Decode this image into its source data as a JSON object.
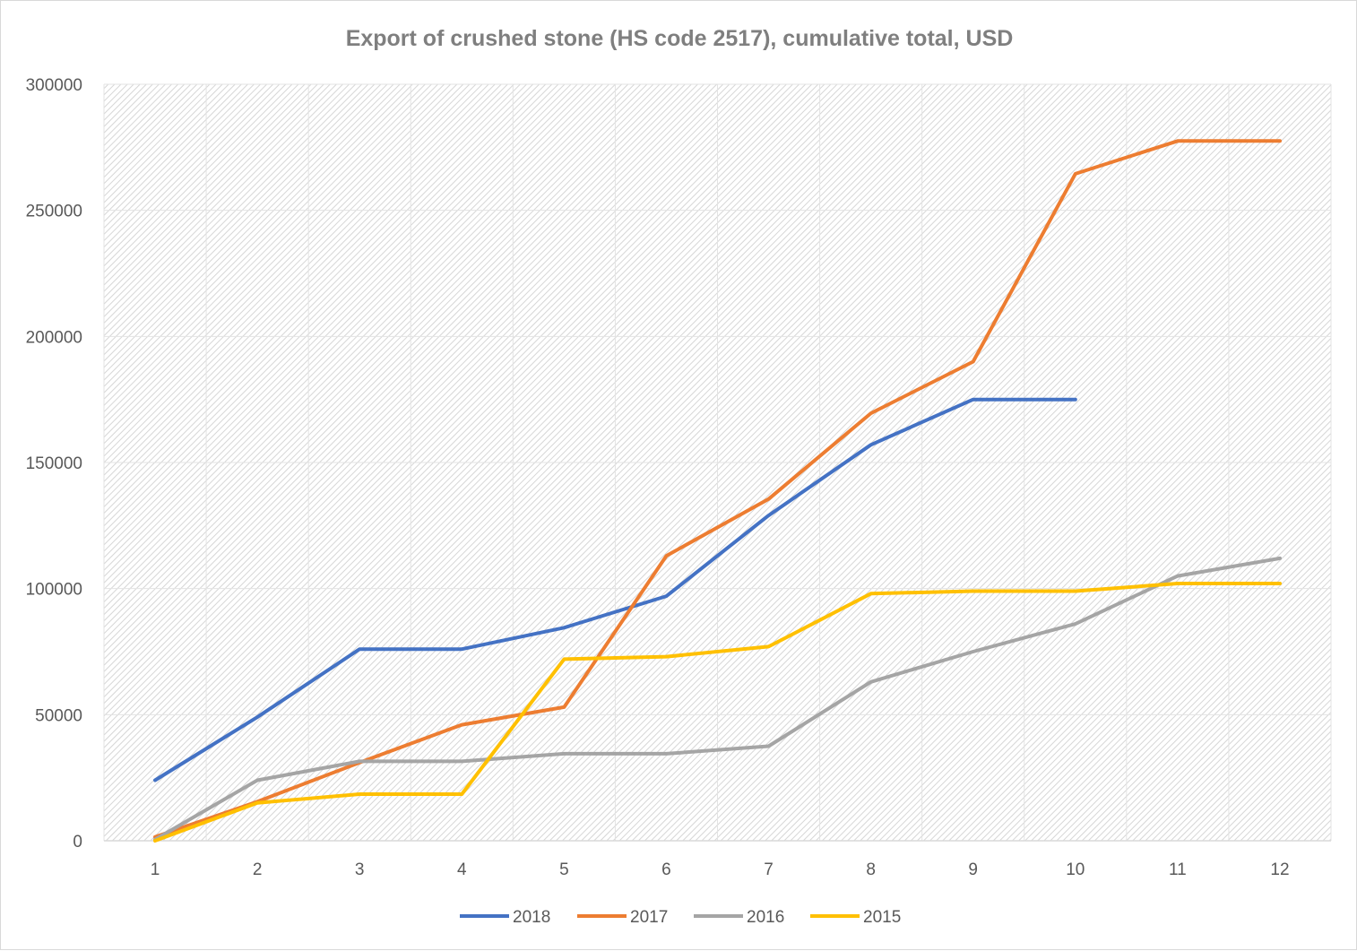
{
  "chart_data": {
    "type": "line",
    "title": "Export of crushed stone (HS code 2517), cumulative total, USD",
    "xlabel": "",
    "ylabel": "",
    "categories": [
      "1",
      "2",
      "3",
      "4",
      "5",
      "6",
      "7",
      "8",
      "9",
      "10",
      "11",
      "12"
    ],
    "ylim": [
      0,
      300000
    ],
    "yticks": [
      "0",
      "50000",
      "100000",
      "150000",
      "200000",
      "250000",
      "300000"
    ],
    "grid": true,
    "legend_position": "bottom",
    "series": [
      {
        "name": "2018",
        "color": "#4472c4",
        "values": [
          24000,
          49000,
          76000,
          76000,
          84500,
          97000,
          129000,
          157000,
          175000,
          175000,
          null,
          null
        ]
      },
      {
        "name": "2017",
        "color": "#ed7d31",
        "values": [
          1500,
          15500,
          31000,
          46000,
          53000,
          113000,
          135500,
          169500,
          190000,
          264500,
          277500,
          277500
        ]
      },
      {
        "name": "2016",
        "color": "#a5a5a5",
        "values": [
          500,
          24000,
          31500,
          31500,
          34500,
          34500,
          37500,
          63000,
          75000,
          86000,
          105000,
          112000
        ]
      },
      {
        "name": "2015",
        "color": "#ffc000",
        "values": [
          0,
          15000,
          18500,
          18500,
          72000,
          73000,
          77000,
          98000,
          99000,
          99000,
          102000,
          102000
        ]
      }
    ]
  }
}
